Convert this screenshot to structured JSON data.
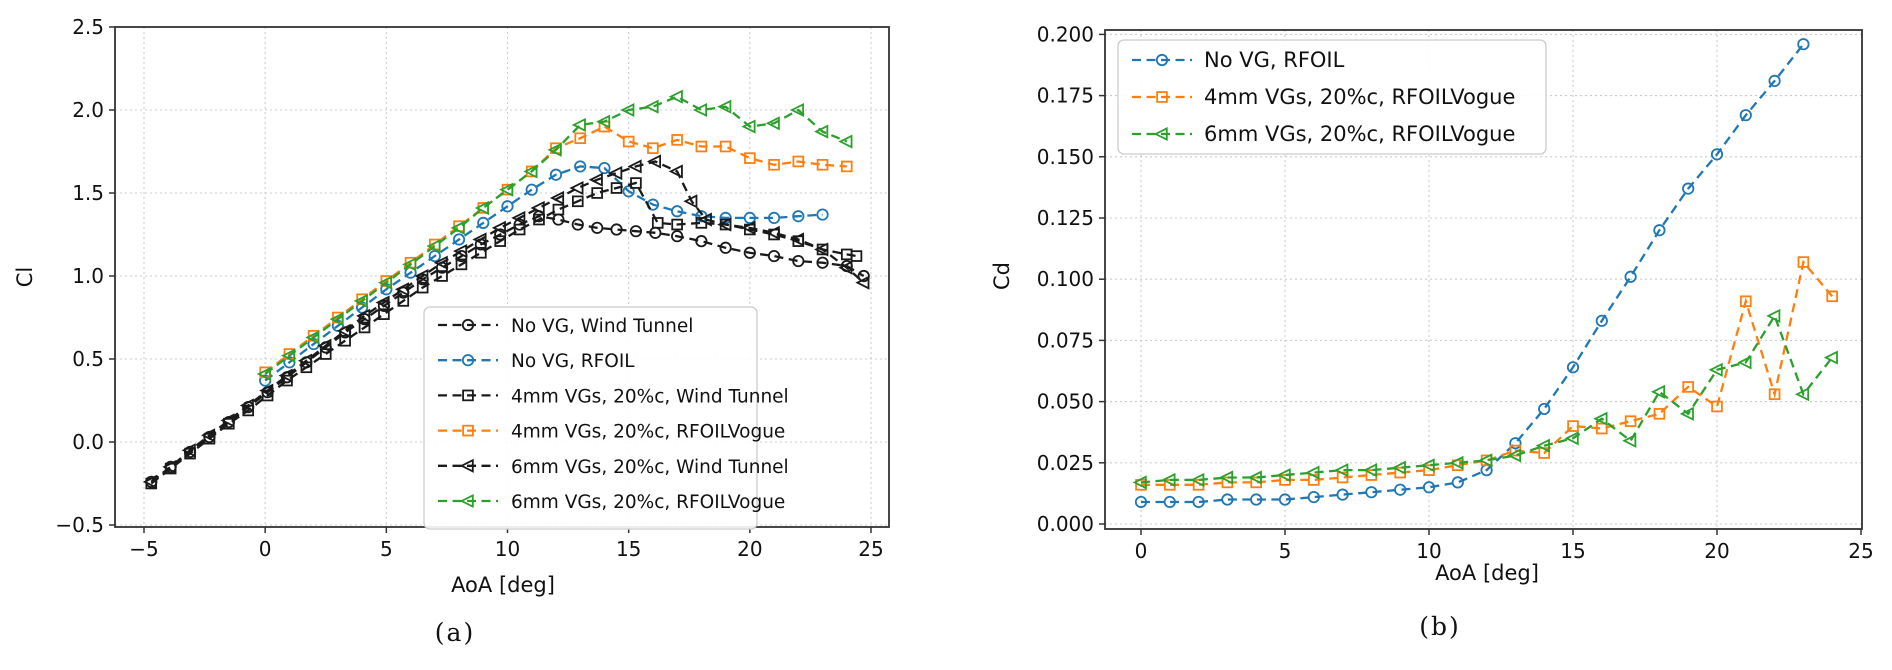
{
  "captions": {
    "a": "(a)",
    "b": "(b)"
  },
  "colors": {
    "black": "#1a1a1a",
    "blue": "#1f77b4",
    "orange": "#ff7f0e",
    "green": "#2ca02c",
    "grid": "#cccccc",
    "spine": "#333333",
    "text": "#111111",
    "legend_border": "#cccccc",
    "legend_bg": "#ffffff"
  },
  "chart_data": [
    {
      "id": "cl-vs-aoa",
      "type": "line",
      "title": "",
      "xlabel": "AoA [deg]",
      "ylabel": "Cl",
      "xlim": [
        -6.2,
        25.8
      ],
      "ylim": [
        -0.5,
        2.5
      ],
      "grid": true,
      "legend_position": "lower right",
      "xticks": [
        -5,
        0,
        5,
        10,
        15,
        20,
        25
      ],
      "xtick_labels": [
        "−5",
        "0",
        "5",
        "10",
        "15",
        "20",
        "25"
      ],
      "yticks": [
        -0.5,
        0.0,
        0.5,
        1.0,
        1.5,
        2.0,
        2.5
      ],
      "ytick_labels": [
        "−0.5",
        "0.0",
        "0.5",
        "1.0",
        "1.5",
        "2.0",
        "2.5"
      ],
      "series": [
        {
          "name": "No VG, Wind Tunnel",
          "color": "black",
          "marker": "circle",
          "x": [
            -4.7,
            -3.9,
            -3.1,
            -2.3,
            -1.5,
            -0.7,
            0.1,
            0.9,
            1.7,
            2.5,
            3.3,
            4.1,
            4.9,
            5.7,
            6.5,
            7.3,
            8.1,
            8.9,
            9.7,
            10.5,
            11.3,
            12.1,
            12.9,
            13.7,
            14.5,
            15.3,
            16.1,
            17,
            18,
            19,
            20,
            21,
            22,
            23,
            24,
            24.7
          ],
          "y": [
            -0.24,
            -0.15,
            -0.06,
            0.03,
            0.12,
            0.21,
            0.3,
            0.39,
            0.48,
            0.57,
            0.66,
            0.74,
            0.82,
            0.9,
            0.98,
            1.05,
            1.12,
            1.19,
            1.25,
            1.31,
            1.36,
            1.34,
            1.31,
            1.29,
            1.28,
            1.27,
            1.26,
            1.24,
            1.21,
            1.17,
            1.14,
            1.12,
            1.09,
            1.08,
            1.06,
            1.0
          ]
        },
        {
          "name": "No VG, RFOIL",
          "color": "blue",
          "marker": "circle",
          "x": [
            0,
            1,
            2,
            3,
            4,
            5,
            6,
            7,
            8,
            9,
            10,
            11,
            12,
            13,
            14,
            15,
            16,
            17,
            18,
            19,
            20,
            21,
            22,
            23
          ],
          "y": [
            0.37,
            0.48,
            0.59,
            0.7,
            0.81,
            0.92,
            1.02,
            1.12,
            1.22,
            1.32,
            1.42,
            1.52,
            1.61,
            1.66,
            1.65,
            1.51,
            1.43,
            1.39,
            1.36,
            1.35,
            1.35,
            1.35,
            1.36,
            1.37
          ]
        },
        {
          "name": "4mm VGs, 20%c, Wind Tunnel",
          "color": "black",
          "marker": "square",
          "x": [
            -4.7,
            -3.9,
            -3.1,
            -2.3,
            -1.5,
            -0.7,
            0.1,
            0.9,
            1.7,
            2.5,
            3.3,
            4.1,
            4.9,
            5.7,
            6.5,
            7.3,
            8.1,
            8.9,
            9.7,
            10.5,
            11.3,
            12.1,
            12.9,
            13.7,
            14.5,
            15.3,
            16.2,
            17,
            18,
            19,
            20,
            21,
            22,
            23,
            24,
            24.4
          ],
          "y": [
            -0.25,
            -0.16,
            -0.07,
            0.02,
            0.11,
            0.19,
            0.28,
            0.37,
            0.45,
            0.53,
            0.61,
            0.69,
            0.77,
            0.85,
            0.93,
            1.0,
            1.07,
            1.14,
            1.21,
            1.28,
            1.34,
            1.4,
            1.45,
            1.5,
            1.53,
            1.56,
            1.32,
            1.31,
            1.32,
            1.31,
            1.28,
            1.25,
            1.21,
            1.16,
            1.13,
            1.12
          ]
        },
        {
          "name": "4mm VGs, 20%c, RFOILVogue",
          "color": "orange",
          "marker": "square",
          "x": [
            0,
            1,
            2,
            3,
            4,
            5,
            6,
            7,
            8,
            9,
            10,
            11,
            12,
            13,
            14,
            15,
            16,
            17,
            18,
            19,
            20,
            21,
            22,
            23,
            24
          ],
          "y": [
            0.42,
            0.53,
            0.64,
            0.75,
            0.86,
            0.97,
            1.08,
            1.19,
            1.3,
            1.41,
            1.52,
            1.63,
            1.77,
            1.83,
            1.9,
            1.81,
            1.77,
            1.82,
            1.78,
            1.78,
            1.71,
            1.67,
            1.69,
            1.67,
            1.66
          ]
        },
        {
          "name": "6mm VGs, 20%c, Wind Tunnel",
          "color": "black",
          "marker": "triangle-left",
          "x": [
            -4.7,
            -3.9,
            -3.1,
            -2.3,
            -1.5,
            -0.7,
            0.1,
            0.9,
            1.7,
            2.5,
            3.3,
            4.1,
            4.9,
            5.7,
            6.5,
            7.3,
            8.1,
            8.9,
            9.7,
            10.5,
            11.3,
            12.1,
            12.9,
            13.7,
            14.5,
            15.3,
            16.1,
            17,
            17.6,
            18.2,
            19,
            20,
            21,
            22,
            23,
            24,
            24.7
          ],
          "y": [
            -0.24,
            -0.15,
            -0.05,
            0.04,
            0.13,
            0.22,
            0.31,
            0.4,
            0.49,
            0.58,
            0.67,
            0.76,
            0.84,
            0.92,
            1.0,
            1.08,
            1.15,
            1.22,
            1.29,
            1.35,
            1.41,
            1.47,
            1.53,
            1.58,
            1.62,
            1.66,
            1.69,
            1.63,
            1.45,
            1.34,
            1.31,
            1.29,
            1.26,
            1.22,
            1.16,
            1.05,
            0.96
          ]
        },
        {
          "name": "6mm VGs, 20%c, RFOILVogue",
          "color": "green",
          "marker": "triangle-left",
          "x": [
            0,
            1,
            2,
            3,
            4,
            5,
            6,
            7,
            8,
            9,
            10,
            11,
            12,
            13,
            14,
            15,
            16,
            17,
            18,
            19,
            20,
            21,
            22,
            23,
            24
          ],
          "y": [
            0.41,
            0.52,
            0.63,
            0.74,
            0.85,
            0.96,
            1.07,
            1.18,
            1.29,
            1.41,
            1.52,
            1.63,
            1.76,
            1.91,
            1.93,
            2.0,
            2.02,
            2.08,
            2.0,
            2.02,
            1.9,
            1.92,
            2.0,
            1.87,
            1.81
          ]
        }
      ]
    },
    {
      "id": "cd-vs-aoa",
      "type": "line",
      "title": "",
      "xlabel": "AoA [deg]",
      "ylabel": "Cd",
      "xlim": [
        -1.2,
        25.0
      ],
      "ylim": [
        -0.002,
        0.202
      ],
      "grid": true,
      "legend_position": "upper left",
      "xticks": [
        0,
        5,
        10,
        15,
        20,
        25
      ],
      "xtick_labels": [
        "0",
        "5",
        "10",
        "15",
        "20",
        "25"
      ],
      "yticks": [
        0.0,
        0.025,
        0.05,
        0.075,
        0.1,
        0.125,
        0.15,
        0.175,
        0.2
      ],
      "ytick_labels": [
        "0.000",
        "0.025",
        "0.050",
        "0.075",
        "0.100",
        "0.125",
        "0.150",
        "0.175",
        "0.200"
      ],
      "series": [
        {
          "name": "No VG, RFOIL",
          "color": "blue",
          "marker": "circle",
          "x": [
            0,
            1,
            2,
            3,
            4,
            5,
            6,
            7,
            8,
            9,
            10,
            11,
            12,
            13,
            14,
            15,
            16,
            17,
            18,
            19,
            20,
            21,
            22,
            23
          ],
          "y": [
            0.009,
            0.009,
            0.009,
            0.01,
            0.01,
            0.01,
            0.011,
            0.012,
            0.013,
            0.014,
            0.015,
            0.017,
            0.022,
            0.033,
            0.047,
            0.064,
            0.083,
            0.101,
            0.12,
            0.137,
            0.151,
            0.167,
            0.181,
            0.196
          ]
        },
        {
          "name": "4mm VGs, 20%c, RFOILVogue",
          "color": "orange",
          "marker": "square",
          "x": [
            0,
            1,
            2,
            3,
            4,
            5,
            6,
            7,
            8,
            9,
            10,
            11,
            12,
            13,
            14,
            15,
            16,
            17,
            18,
            19,
            20,
            21,
            22,
            23,
            24
          ],
          "y": [
            0.016,
            0.016,
            0.016,
            0.017,
            0.017,
            0.018,
            0.018,
            0.019,
            0.02,
            0.021,
            0.022,
            0.024,
            0.026,
            0.03,
            0.029,
            0.04,
            0.039,
            0.042,
            0.045,
            0.056,
            0.048,
            0.091,
            0.053,
            0.107,
            0.093
          ]
        },
        {
          "name": "6mm VGs, 20%c, RFOILVogue",
          "color": "green",
          "marker": "triangle-left",
          "x": [
            0,
            1,
            2,
            3,
            4,
            5,
            6,
            7,
            8,
            9,
            10,
            11,
            12,
            13,
            14,
            15,
            16,
            17,
            18,
            19,
            20,
            21,
            22,
            23,
            24
          ],
          "y": [
            0.017,
            0.018,
            0.018,
            0.019,
            0.019,
            0.02,
            0.021,
            0.022,
            0.022,
            0.023,
            0.024,
            0.025,
            0.026,
            0.028,
            0.032,
            0.035,
            0.043,
            0.034,
            0.054,
            0.045,
            0.063,
            0.066,
            0.085,
            0.053,
            0.068
          ]
        }
      ]
    }
  ]
}
